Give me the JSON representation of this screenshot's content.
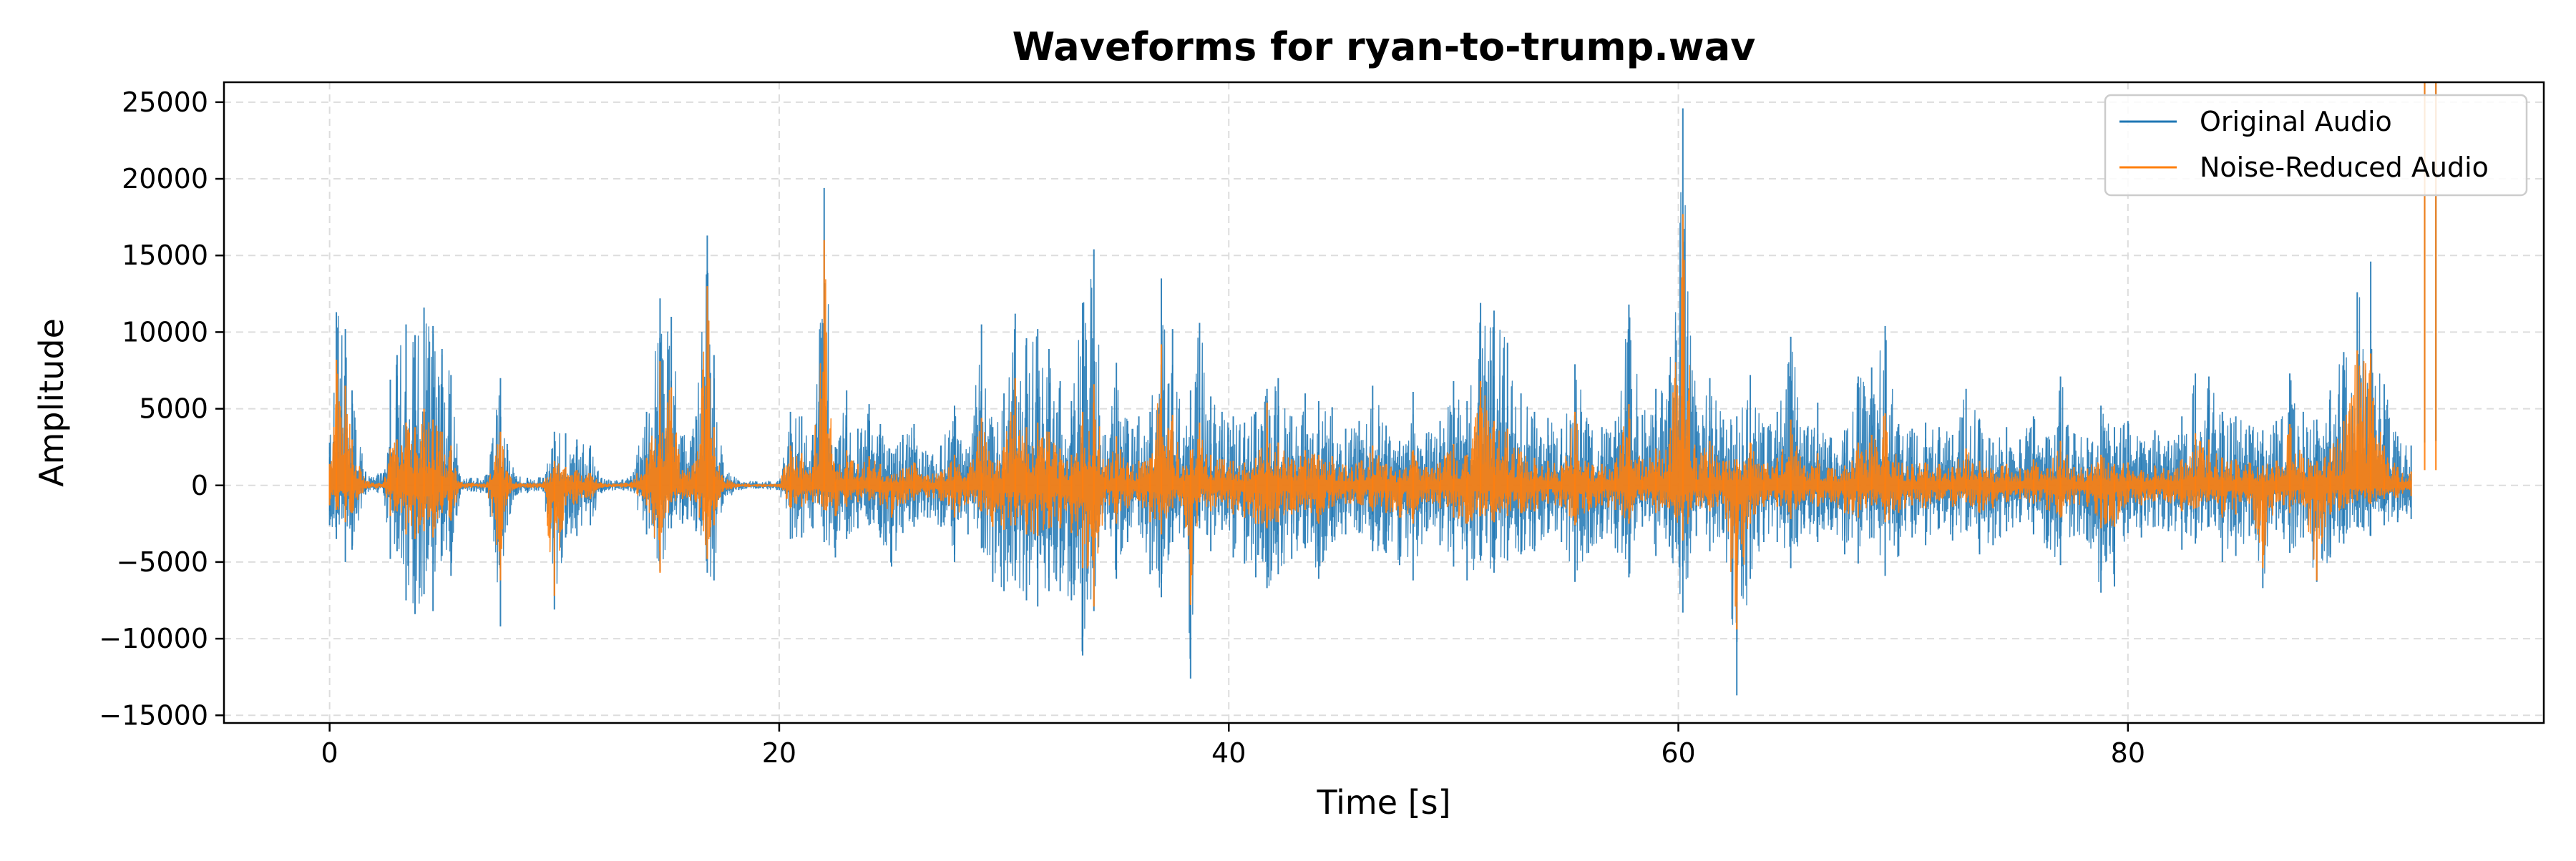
{
  "chart_data": {
    "type": "line",
    "title": "Waveforms for ryan-to-trump.wav",
    "xlabel": "Time [s]",
    "ylabel": "Amplitude",
    "xlim": [
      -4.7,
      98.5
    ],
    "ylim": [
      -15500,
      26300
    ],
    "x_ticks": [
      0,
      20,
      40,
      60,
      80
    ],
    "y_ticks": [
      -15000,
      -10000,
      -5000,
      0,
      5000,
      10000,
      15000,
      20000,
      25000
    ],
    "x_tick_labels": [
      "0",
      "20",
      "40",
      "60",
      "80"
    ],
    "y_tick_labels": [
      "−15000",
      "−10000",
      "−5000",
      "0",
      "5000",
      "10000",
      "15000",
      "20000",
      "25000"
    ],
    "grid": true,
    "legend_position": "top-right",
    "duration_s": 93.7,
    "series": [
      {
        "name": "Original Audio",
        "color": "#1f77b4",
        "envelope": {
          "times": [
            0.0,
            0.3,
            0.7,
            1.0,
            1.6,
            2.4,
            2.7,
            3.0,
            3.4,
            3.8,
            4.2,
            4.6,
            5.0,
            5.4,
            5.8,
            6.3,
            7.0,
            7.6,
            7.9,
            8.3,
            8.8,
            9.5,
            10.0,
            10.5,
            11.0,
            11.6,
            12.1,
            12.7,
            13.4,
            14.1,
            14.7,
            15.2,
            15.7,
            16.3,
            16.8,
            17.1,
            17.5,
            18.2,
            19.0,
            20.0,
            20.5,
            21.0,
            21.5,
            22.0,
            22.5,
            23.0,
            23.5,
            24.0,
            24.5,
            25.0,
            25.5,
            26.0,
            26.6,
            27.2,
            27.8,
            28.4,
            29.0,
            29.5,
            30.0,
            30.5,
            31.0,
            31.5,
            32.0,
            32.5,
            33.0,
            33.5,
            34.0,
            34.5,
            35.0,
            35.5,
            36.0,
            36.5,
            37.0,
            37.5,
            38.0,
            38.3,
            38.7,
            39.2,
            39.7,
            40.2,
            40.7,
            41.2,
            41.7,
            42.2,
            42.8,
            43.4,
            44.0,
            44.6,
            45.2,
            45.8,
            46.4,
            47.0,
            47.6,
            48.2,
            48.8,
            49.4,
            50.0,
            50.6,
            51.2,
            51.8,
            52.4,
            53.0,
            53.6,
            54.2,
            54.8,
            55.4,
            56.0,
            56.6,
            57.2,
            57.8,
            58.4,
            59.0,
            59.6,
            60.2,
            60.8,
            61.4,
            62.0,
            62.6,
            63.2,
            63.8,
            64.4,
            65.0,
            65.6,
            66.2,
            66.8,
            67.4,
            68.0,
            68.6,
            69.2,
            69.8,
            70.4,
            71.0,
            71.6,
            72.2,
            72.8,
            73.4,
            74.0,
            74.6,
            75.2,
            75.8,
            76.4,
            77.0,
            77.6,
            78.2,
            78.8,
            79.4,
            80.0,
            80.6,
            81.2,
            81.8,
            82.4,
            83.0,
            83.6,
            84.2,
            84.8,
            85.4,
            86.0,
            86.6,
            87.2,
            87.8,
            88.4,
            89.0,
            89.6,
            90.2,
            90.8,
            91.4,
            92.0,
            92.6,
            93.2,
            93.7
          ],
          "max": [
            2800,
            11300,
            10200,
            6200,
            900,
            800,
            6900,
            8500,
            10500,
            9800,
            11600,
            10400,
            8900,
            7200,
            600,
            500,
            700,
            7000,
            2700,
            600,
            500,
            500,
            3500,
            3400,
            3000,
            2600,
            500,
            300,
            600,
            4800,
            12200,
            11000,
            3200,
            4500,
            16300,
            8500,
            1500,
            300,
            250,
            300,
            4800,
            4500,
            3300,
            19400,
            2500,
            6200,
            3700,
            5300,
            4000,
            2100,
            3300,
            4000,
            2000,
            2600,
            5200,
            2100,
            10500,
            3800,
            6000,
            11200,
            9600,
            10200,
            8900,
            6800,
            5500,
            11900,
            15400,
            3300,
            8000,
            4200,
            4500,
            4800,
            13500,
            10200,
            3100,
            6200,
            10600,
            5800,
            4800,
            4500,
            4100,
            4800,
            6300,
            7000,
            4500,
            6000,
            5500,
            5100,
            3700,
            4200,
            6500,
            3900,
            2900,
            6100,
            3400,
            4200,
            6800,
            5500,
            11900,
            11400,
            9300,
            6000,
            4800,
            4400,
            3700,
            7900,
            4000,
            3800,
            4200,
            11800,
            4600,
            6300,
            7200,
            24600,
            4800,
            7000,
            4300,
            4500,
            7200,
            3800,
            4800,
            9700,
            3600,
            5400,
            3100,
            3600,
            7100,
            7700,
            10400,
            4000,
            3700,
            4100,
            3800,
            3300,
            6300,
            4300,
            2800,
            3800,
            3000,
            4500,
            3100,
            7100,
            3400,
            3100,
            5200,
            3800,
            4200,
            2800,
            3600,
            2900,
            4500,
            7300,
            7100,
            4800,
            4500,
            3900,
            3600,
            4200,
            7300,
            4800,
            4300,
            6200,
            8700,
            12600,
            14600,
            6600,
            3200,
            2600,
            2800,
            2900,
            2500
          ],
          "min": [
            -2600,
            -3500,
            -5000,
            -4200,
            -600,
            -500,
            -4800,
            -4300,
            -7500,
            -8400,
            -7100,
            -8200,
            -4600,
            -5900,
            -600,
            -400,
            -500,
            -9200,
            -2600,
            -600,
            -500,
            -400,
            -8100,
            -3400,
            -3300,
            -2600,
            -500,
            -300,
            -400,
            -3200,
            -5600,
            -2800,
            -2500,
            -3000,
            -5700,
            -6200,
            -1200,
            -300,
            -200,
            -300,
            -3500,
            -3400,
            -2800,
            -3700,
            -4700,
            -3500,
            -2800,
            -2600,
            -3400,
            -5300,
            -3100,
            -2700,
            -2100,
            -2700,
            -5000,
            -3200,
            -4100,
            -6300,
            -6900,
            -6200,
            -7500,
            -7900,
            -6900,
            -6900,
            -7500,
            -11100,
            -8200,
            -2900,
            -6100,
            -3700,
            -2600,
            -5800,
            -7300,
            -3700,
            -3400,
            -12600,
            -2800,
            -4300,
            -2900,
            -4700,
            -5100,
            -6000,
            -6700,
            -5800,
            -4800,
            -4100,
            -6100,
            -3700,
            -3200,
            -3100,
            -4300,
            -4400,
            -5200,
            -6200,
            -3000,
            -3900,
            -5300,
            -6200,
            -4900,
            -5700,
            -4900,
            -4500,
            -4300,
            -3100,
            -3700,
            -6300,
            -4400,
            -3500,
            -4100,
            -6000,
            -2700,
            -4600,
            -4000,
            -8300,
            -3300,
            -4300,
            -3100,
            -13700,
            -6100,
            -3700,
            -3700,
            -5400,
            -2800,
            -3700,
            -2900,
            -4500,
            -5100,
            -3400,
            -5900,
            -4600,
            -3400,
            -3900,
            -2800,
            -3600,
            -2900,
            -4500,
            -3900,
            -3000,
            -2400,
            -3200,
            -4100,
            -5200,
            -3300,
            -3600,
            -7000,
            -6600,
            -3100,
            -3400,
            -2700,
            -3000,
            -4200,
            -3800,
            -2700,
            -5000,
            -4600,
            -3300,
            -6700,
            -2900,
            -4400,
            -3400,
            -6300,
            -4700,
            -3800,
            -2700,
            -3300,
            -2600,
            -2400,
            -2200
          ]
        }
      },
      {
        "name": "Noise-Reduced Audio",
        "color": "#ff7f0e",
        "envelope": {
          "times": [
            0.0,
            0.3,
            0.7,
            1.0,
            1.6,
            2.4,
            2.7,
            3.0,
            3.4,
            3.8,
            4.2,
            4.6,
            5.0,
            5.4,
            5.8,
            6.3,
            7.0,
            7.6,
            7.9,
            8.3,
            8.8,
            9.5,
            10.0,
            10.5,
            11.0,
            11.6,
            12.1,
            12.7,
            13.4,
            14.1,
            14.7,
            15.2,
            15.7,
            16.3,
            16.8,
            17.1,
            17.5,
            18.2,
            19.0,
            20.0,
            20.5,
            21.0,
            21.5,
            22.0,
            22.5,
            23.0,
            23.5,
            24.0,
            24.5,
            25.0,
            25.5,
            26.0,
            26.6,
            27.2,
            27.8,
            28.4,
            29.0,
            29.5,
            30.0,
            30.5,
            31.0,
            31.5,
            32.0,
            32.5,
            33.0,
            33.5,
            34.0,
            34.5,
            35.0,
            35.5,
            36.0,
            36.5,
            37.0,
            37.5,
            38.0,
            38.3,
            38.7,
            39.2,
            39.7,
            40.2,
            40.7,
            41.2,
            41.7,
            42.2,
            42.8,
            43.4,
            44.0,
            44.6,
            45.2,
            45.8,
            46.4,
            47.0,
            47.6,
            48.2,
            48.8,
            49.4,
            50.0,
            50.6,
            51.2,
            51.8,
            52.4,
            53.0,
            53.6,
            54.2,
            54.8,
            55.4,
            56.0,
            56.6,
            57.2,
            57.8,
            58.4,
            59.0,
            59.6,
            60.2,
            60.8,
            61.4,
            62.0,
            62.6,
            63.2,
            63.8,
            64.4,
            65.0,
            65.6,
            66.2,
            66.8,
            67.4,
            68.0,
            68.6,
            69.2,
            69.8,
            70.4,
            71.0,
            71.6,
            72.2,
            72.8,
            73.4,
            74.0,
            74.6,
            75.2,
            75.8,
            76.4,
            77.0,
            77.6,
            78.2,
            78.8,
            79.4,
            80.0,
            80.6,
            81.2,
            81.8,
            82.4,
            83.0,
            83.6,
            84.2,
            84.8,
            85.4,
            86.0,
            86.6,
            87.2,
            87.8,
            88.4,
            89.0,
            89.6,
            90.2,
            90.8,
            91.4,
            92.0,
            92.6,
            93.2,
            93.7
          ],
          "max": [
            1400,
            8200,
            6500,
            3000,
            300,
            200,
            2400,
            3000,
            4100,
            3800,
            5000,
            4300,
            3500,
            2600,
            200,
            150,
            200,
            3500,
            900,
            200,
            150,
            150,
            1600,
            1200,
            1000,
            800,
            150,
            100,
            200,
            1800,
            8100,
            6400,
            1000,
            1600,
            13000,
            3800,
            500,
            100,
            80,
            100,
            2600,
            2100,
            1200,
            16000,
            900,
            2300,
            1400,
            1900,
            1400,
            700,
            1100,
            1500,
            700,
            900,
            2000,
            800,
            4400,
            1500,
            2500,
            7000,
            3800,
            4100,
            3500,
            2400,
            2000,
            4800,
            6600,
            1200,
            3200,
            1500,
            1600,
            1800,
            9200,
            4600,
            1100,
            2300,
            4100,
            2000,
            1700,
            1600,
            1500,
            1800,
            5400,
            2800,
            1700,
            2300,
            2000,
            1900,
            1300,
            1500,
            2600,
            1400,
            1000,
            2300,
            1200,
            1500,
            2700,
            2000,
            6800,
            4200,
            3700,
            2200,
            1800,
            1600,
            1300,
            4800,
            1500,
            1400,
            1500,
            5300,
            1700,
            2400,
            2700,
            17700,
            1800,
            2900,
            1600,
            1700,
            2800,
            1400,
            1800,
            4300,
            1300,
            2100,
            1100,
            1300,
            2800,
            3300,
            4700,
            1500,
            1400,
            1500,
            1400,
            1200,
            2400,
            1600,
            1000,
            1400,
            1100,
            1700,
            1100,
            2900,
            1200,
            1100,
            2000,
            1400,
            1500,
            1000,
            1300,
            1000,
            1700,
            3400,
            3000,
            1800,
            1700,
            1500,
            1300,
            1600,
            4000,
            1800,
            1600,
            2400,
            4200,
            8800,
            8600,
            2600,
            1200,
            900,
            1000,
            1000,
            800
          ],
          "min": [
            -1300,
            -1600,
            -2400,
            -1800,
            -200,
            -150,
            -2000,
            -1700,
            -3200,
            -3500,
            -3000,
            -3400,
            -1800,
            -2300,
            -200,
            -150,
            -150,
            -6200,
            -900,
            -200,
            -150,
            -150,
            -7200,
            -1300,
            -1200,
            -900,
            -150,
            -100,
            -150,
            -1300,
            -5700,
            -1100,
            -900,
            -1100,
            -4800,
            -2600,
            -400,
            -100,
            -80,
            -100,
            -1500,
            -1400,
            -1100,
            -1600,
            -2000,
            -1400,
            -1100,
            -1000,
            -1300,
            -2100,
            -1200,
            -1000,
            -800,
            -1000,
            -2100,
            -1200,
            -1700,
            -2700,
            -2900,
            -2600,
            -3200,
            -3300,
            -2800,
            -2800,
            -3100,
            -5400,
            -7900,
            -1100,
            -2500,
            -1500,
            -1000,
            -2400,
            -3200,
            -1500,
            -1300,
            -7800,
            -1100,
            -1700,
            -1100,
            -1900,
            -2100,
            -2500,
            -2800,
            -2400,
            -1900,
            -1600,
            -2500,
            -1400,
            -1200,
            -1200,
            -1700,
            -1800,
            -2100,
            -2500,
            -1100,
            -1500,
            -2100,
            -2500,
            -2000,
            -2400,
            -2000,
            -1800,
            -1700,
            -1200,
            -1400,
            -2600,
            -1700,
            -1300,
            -1600,
            -2500,
            -1000,
            -1800,
            -1500,
            -3600,
            -1300,
            -1700,
            -1200,
            -9400,
            -2500,
            -1400,
            -1400,
            -2200,
            -1000,
            -1400,
            -1100,
            -1800,
            -2100,
            -1300,
            -2400,
            -1800,
            -1300,
            -1500,
            -1000,
            -1400,
            -1100,
            -1800,
            -1500,
            -1100,
            -900,
            -1200,
            -1600,
            -2100,
            -1200,
            -1400,
            -2800,
            -2700,
            -1100,
            -1300,
            -1000,
            -1100,
            -1700,
            -1500,
            -1000,
            -2100,
            -1900,
            -1200,
            -5400,
            -1100,
            -1800,
            -1300,
            -6200,
            -1900,
            -1500,
            -1000,
            -1200,
            -900,
            -800,
            -700
          ]
        }
      }
    ]
  }
}
